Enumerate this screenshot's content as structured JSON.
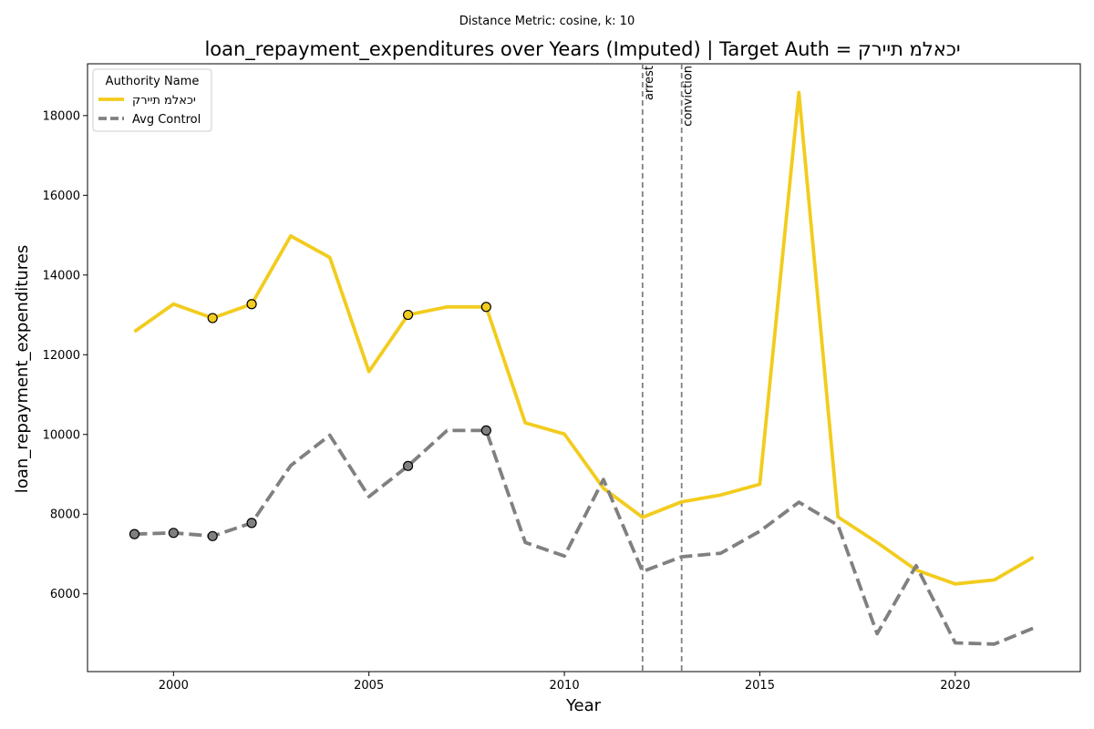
{
  "chart_data": {
    "type": "line",
    "suptitle": "Distance Metric: cosine, k: 10",
    "title": "loan_repayment_expenditures over Years (Imputed) | Target Auth = יכאלמ תיירק",
    "xlabel": "Year",
    "ylabel": "loan_repayment_expenditures",
    "xlim": [
      1997.8,
      2023.2
    ],
    "ylim": [
      4050,
      19300
    ],
    "xticks": [
      2000,
      2005,
      2010,
      2015,
      2020
    ],
    "yticks": [
      6000,
      8000,
      10000,
      12000,
      14000,
      16000,
      18000
    ],
    "grid": false,
    "legend": {
      "title": "Authority Name",
      "placement": "top-left"
    },
    "x": [
      1999,
      2000,
      2001,
      2002,
      2003,
      2004,
      2005,
      2006,
      2007,
      2008,
      2009,
      2010,
      2011,
      2012,
      2013,
      2014,
      2015,
      2016,
      2017,
      2018,
      2019,
      2020,
      2021,
      2022
    ],
    "series": [
      {
        "name": "יכאלמ תיירק",
        "color": "#f2cc1e",
        "style": "solid",
        "values": [
          12580,
          13270,
          12920,
          13270,
          14980,
          14440,
          11580,
          13000,
          13200,
          13200,
          10290,
          10010,
          8650,
          7920,
          8310,
          8480,
          8750,
          18580,
          7930,
          7290,
          6600,
          6250,
          6350,
          6920
        ],
        "imputed_years": [
          2001,
          2002,
          2006,
          2008
        ]
      },
      {
        "name": "Avg Control",
        "color": "#808080",
        "style": "dashed",
        "values": [
          7500,
          7530,
          7450,
          7780,
          9220,
          9980,
          8440,
          9210,
          10100,
          10100,
          7290,
          6950,
          8870,
          6560,
          6930,
          7020,
          7570,
          8300,
          7720,
          5000,
          6710,
          4770,
          4740,
          5140
        ],
        "imputed_years": [
          1999,
          2000,
          2001,
          2002,
          2006,
          2008
        ]
      }
    ],
    "annotations": [
      {
        "x": 2012,
        "label": "arrest"
      },
      {
        "x": 2013,
        "label": "conviction"
      }
    ]
  }
}
